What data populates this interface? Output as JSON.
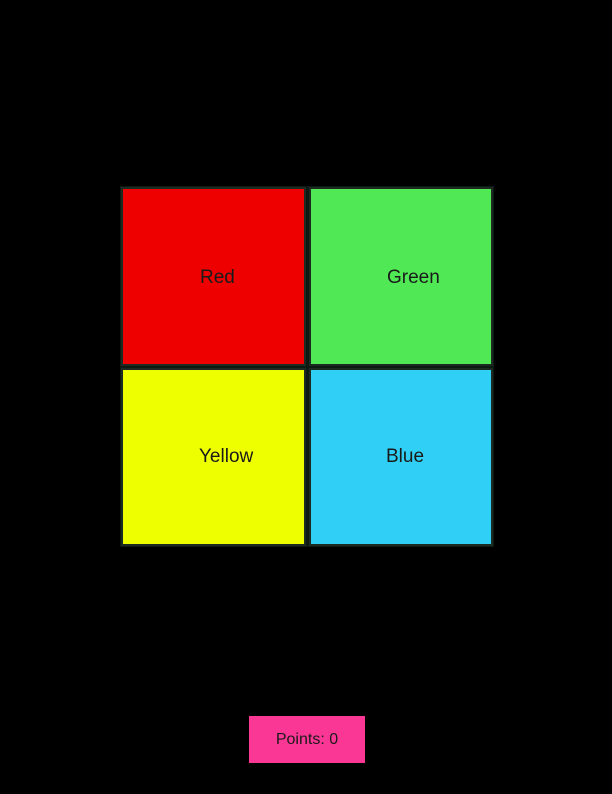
{
  "game": {
    "tiles": [
      {
        "label": "Red",
        "color": "#ee0000"
      },
      {
        "label": "Green",
        "color": "#50e855"
      },
      {
        "label": "Yellow",
        "color": "#eeff00"
      },
      {
        "label": "Blue",
        "color": "#30cff6"
      }
    ],
    "score": {
      "text": "Points: 0",
      "color": "#fb3796"
    },
    "background_color": "#000000"
  }
}
